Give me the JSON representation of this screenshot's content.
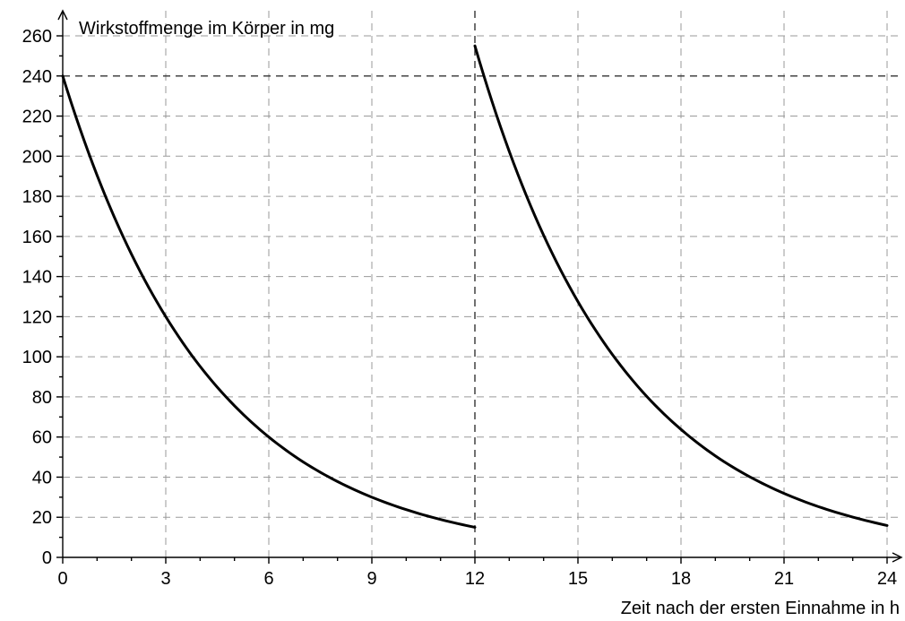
{
  "chart_data": {
    "type": "line",
    "title": "",
    "xlabel": "Zeit nach der ersten Einnahme in h",
    "ylabel": "Wirkstoffmenge im Körper in mg",
    "xlim": [
      0,
      24
    ],
    "ylim": [
      0,
      260
    ],
    "x_ticks": [
      0,
      3,
      6,
      9,
      12,
      15,
      18,
      21,
      24
    ],
    "y_ticks": [
      0,
      20,
      40,
      60,
      80,
      100,
      120,
      140,
      160,
      180,
      200,
      220,
      240,
      260
    ],
    "x_tick_labels": [
      "0",
      "3",
      "6",
      "9",
      "12",
      "15",
      "18",
      "21",
      "24"
    ],
    "y_tick_labels": [
      "0",
      "20",
      "40",
      "60",
      "80",
      "100",
      "120",
      "140",
      "160",
      "180",
      "200",
      "220",
      "240",
      "260"
    ],
    "grid": true,
    "reference_lines": [
      {
        "axis": "x",
        "value": 12
      },
      {
        "axis": "y",
        "value": 240
      }
    ],
    "series": [
      {
        "segments": [
          {
            "x": [
              0,
              1,
              2,
              3,
              4,
              5,
              6,
              7,
              8,
              9,
              10,
              11,
              12
            ],
            "y": [
              240,
              190.5,
              151.2,
              120,
              95.2,
              75.6,
              60,
              47.6,
              37.8,
              30,
              23.8,
              18.9,
              15
            ]
          },
          {
            "x": [
              12,
              13,
              14,
              15,
              16,
              17,
              18,
              19,
              20,
              21,
              22,
              23,
              24
            ],
            "y": [
              255,
              202.4,
              160.6,
              127.5,
              101.2,
              80.3,
              63.8,
              50.6,
              40.2,
              31.9,
              25.3,
              20.1,
              15.9
            ]
          }
        ]
      }
    ]
  }
}
